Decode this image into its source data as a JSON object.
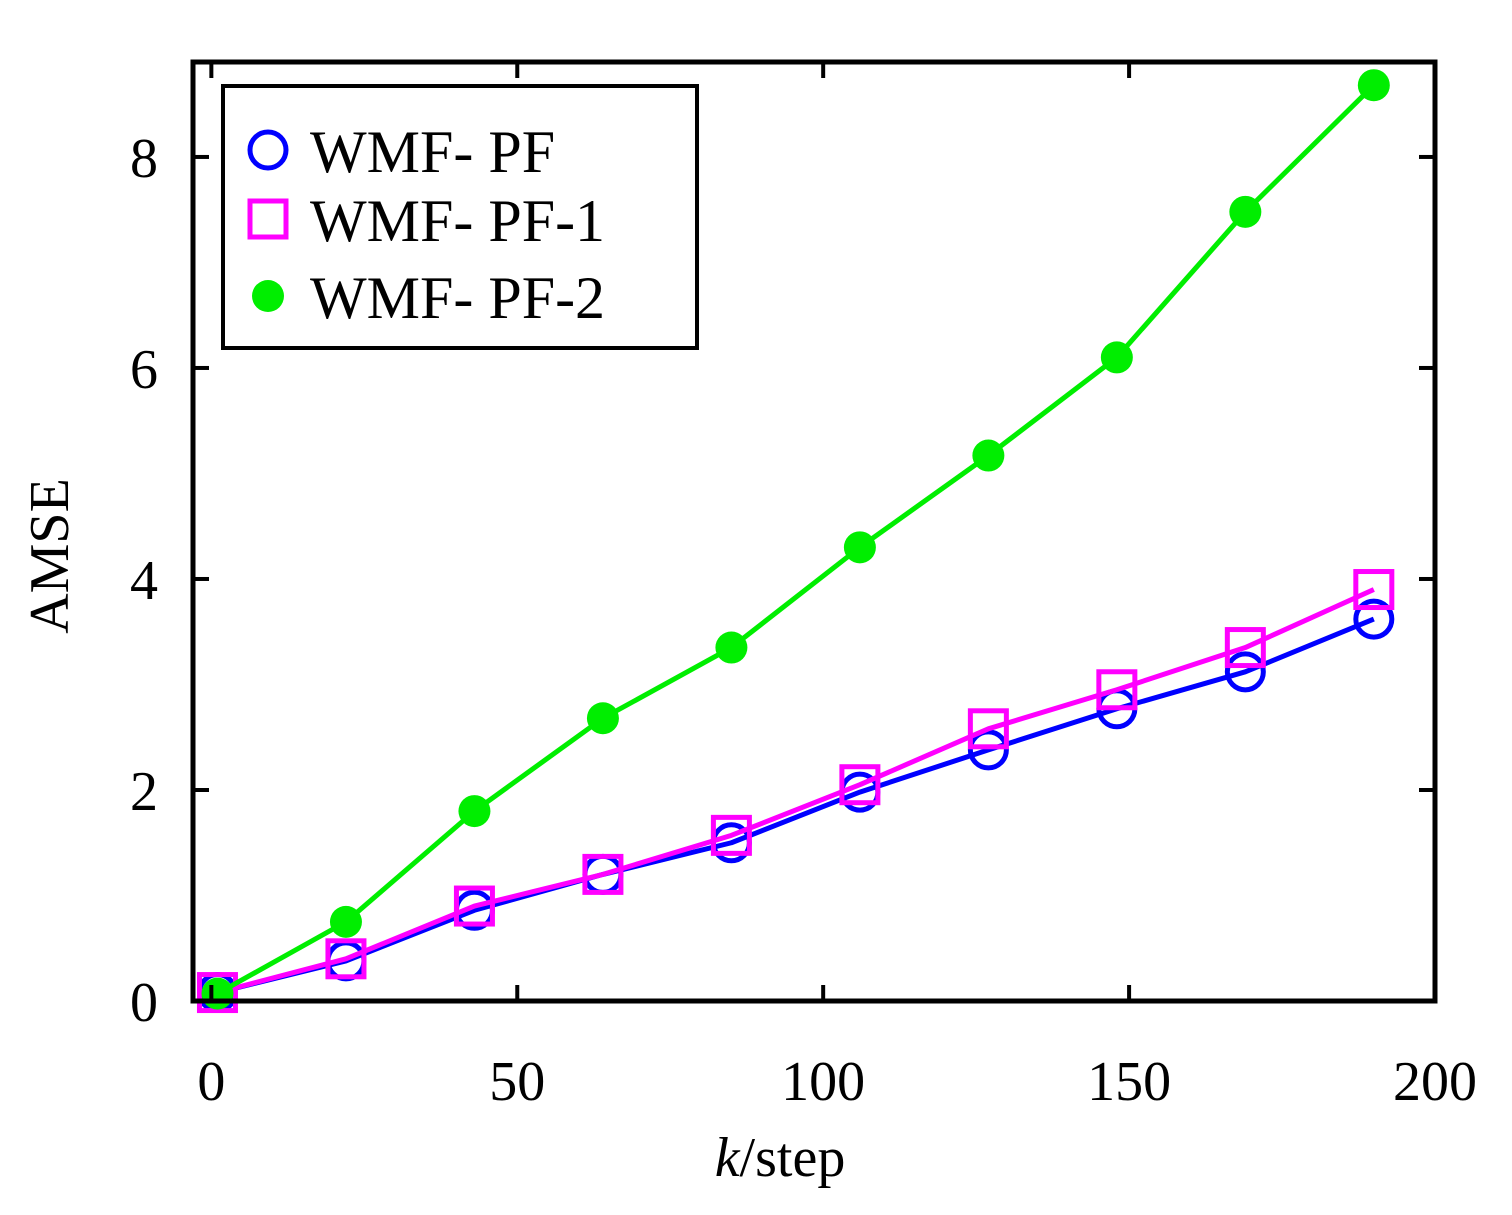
{
  "chart_data": {
    "type": "line",
    "title": "",
    "xlabel": "/step",
    "xlabel_var": "k",
    "ylabel": "AMSE",
    "xlim": [
      -3,
      200
    ],
    "ylim": [
      0,
      8.9
    ],
    "xticks": [
      0,
      50,
      100,
      150,
      200
    ],
    "xtick_labels": [
      "0",
      "50",
      "100",
      "150",
      "200"
    ],
    "yticks": [
      0,
      2,
      4,
      6,
      8
    ],
    "ytick_labels": [
      "0",
      "2",
      "4",
      "6",
      "8"
    ],
    "grid": false,
    "legend_position": "top-left",
    "x": [
      1,
      22,
      43,
      64,
      85,
      106,
      127,
      148,
      169,
      190
    ],
    "series": [
      {
        "name": "WMF- PF",
        "marker": "circle-open",
        "color": "#0000ff",
        "values": [
          0.08,
          0.38,
          0.86,
          1.2,
          1.5,
          1.98,
          2.38,
          2.77,
          3.12,
          3.62
        ]
      },
      {
        "name": "WMF- PF-1",
        "marker": "square-open",
        "color": "#ff00ff",
        "values": [
          0.08,
          0.4,
          0.9,
          1.2,
          1.57,
          2.05,
          2.58,
          2.95,
          3.35,
          3.9
        ]
      },
      {
        "name": "WMF- PF-2",
        "marker": "circle-filled",
        "color": "#00ee00",
        "values": [
          0.07,
          0.75,
          1.8,
          2.68,
          3.35,
          4.3,
          5.17,
          6.1,
          7.48,
          8.68
        ]
      }
    ]
  }
}
